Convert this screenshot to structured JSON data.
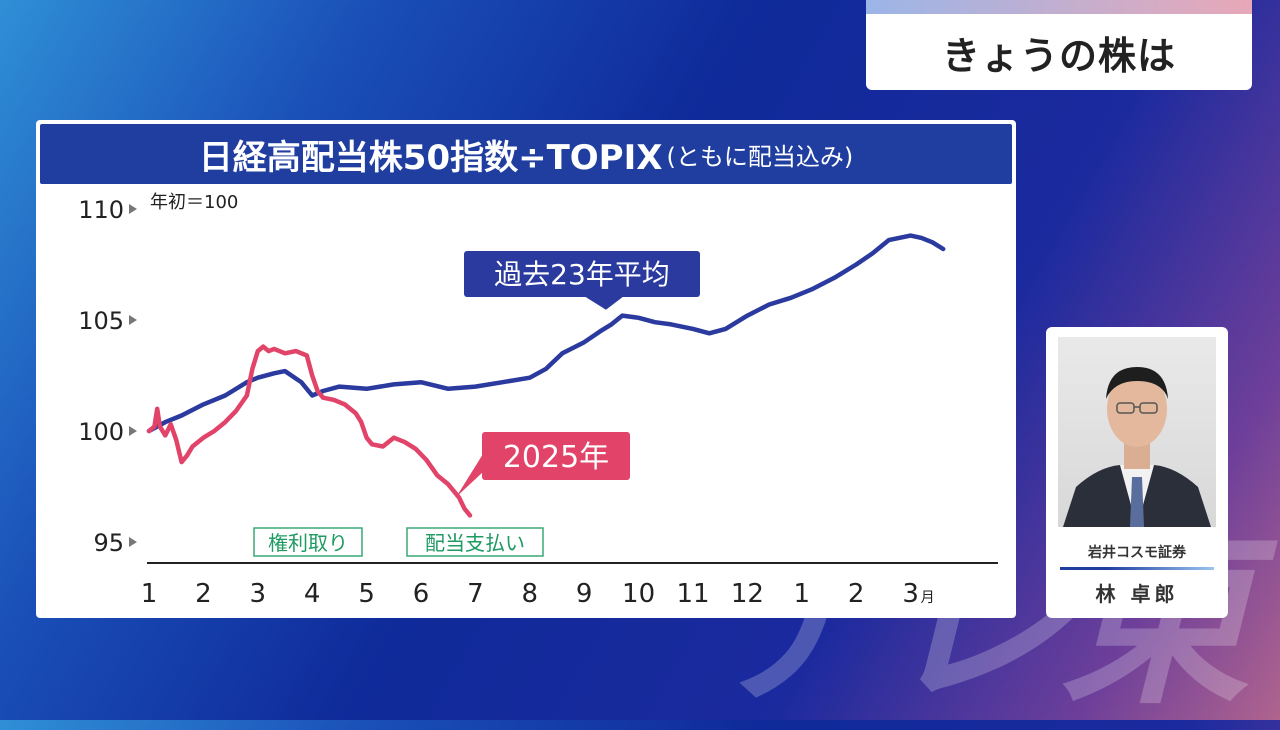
{
  "watermark": "テレ東",
  "segment_label": "きょうの株は",
  "chart_data": {
    "type": "line",
    "title": "日経高配当株50指数÷TOPIX",
    "title_sub": "(ともに配当込み)",
    "y_note": "年初＝100",
    "ylim": [
      95,
      110
    ],
    "y_ticks": [
      95,
      100,
      105,
      110
    ],
    "x_ticks": [
      "1",
      "2",
      "3",
      "4",
      "5",
      "6",
      "7",
      "8",
      "9",
      "10",
      "11",
      "12",
      "1",
      "2",
      "3"
    ],
    "x_unit": "月",
    "grid": false,
    "series": [
      {
        "name": "過去23年平均",
        "color": "#2a3a9e",
        "x": [
          1.0,
          1.3,
          1.6,
          2.0,
          2.4,
          2.8,
          3.0,
          3.3,
          3.5,
          3.8,
          4.0,
          4.2,
          4.5,
          5.0,
          5.5,
          6.0,
          6.5,
          7.0,
          7.5,
          8.0,
          8.3,
          8.6,
          9.0,
          9.3,
          9.5,
          9.7,
          10.0,
          10.3,
          10.6,
          11.0,
          11.3,
          11.6,
          12.0,
          12.4,
          12.8,
          13.2,
          13.6,
          14.0,
          14.3,
          14.6,
          15.0,
          15.2,
          15.4,
          15.6
        ],
        "y": [
          100.0,
          100.4,
          100.7,
          101.2,
          101.6,
          102.2,
          102.4,
          102.6,
          102.7,
          102.2,
          101.6,
          101.8,
          102.0,
          101.9,
          102.1,
          102.2,
          101.9,
          102.0,
          102.2,
          102.4,
          102.8,
          103.5,
          104.0,
          104.5,
          104.8,
          105.2,
          105.1,
          104.9,
          104.8,
          104.6,
          104.4,
          104.6,
          105.2,
          105.7,
          106.0,
          106.4,
          106.9,
          107.5,
          108.0,
          108.6,
          108.8,
          108.7,
          108.5,
          108.2
        ]
      },
      {
        "name": "2025年",
        "color": "#e14468",
        "x": [
          1.0,
          1.1,
          1.15,
          1.2,
          1.3,
          1.4,
          1.5,
          1.6,
          1.7,
          1.8,
          2.0,
          2.2,
          2.4,
          2.6,
          2.8,
          2.9,
          3.0,
          3.1,
          3.2,
          3.3,
          3.5,
          3.7,
          3.9,
          4.0,
          4.1,
          4.2,
          4.4,
          4.6,
          4.8,
          4.9,
          5.0,
          5.1,
          5.3,
          5.5,
          5.7,
          5.9,
          6.1,
          6.3,
          6.5,
          6.7,
          6.8,
          6.9
        ],
        "y": [
          100.0,
          100.2,
          101.0,
          100.2,
          99.8,
          100.3,
          99.6,
          98.6,
          98.9,
          99.3,
          99.7,
          100.0,
          100.4,
          100.9,
          101.6,
          102.8,
          103.6,
          103.8,
          103.6,
          103.7,
          103.5,
          103.6,
          103.4,
          102.5,
          101.8,
          101.5,
          101.4,
          101.2,
          100.8,
          100.4,
          99.7,
          99.4,
          99.3,
          99.7,
          99.5,
          99.2,
          98.7,
          98.0,
          97.6,
          97.0,
          96.5,
          96.2
        ]
      }
    ],
    "annotations": [
      {
        "text": "過去23年平均",
        "x": 9.4,
        "y": 105.1
      },
      {
        "text": "2025年",
        "x": 6.5,
        "y": 97.3
      }
    ],
    "period_labels": [
      "権利取り",
      "配当支払い"
    ]
  },
  "commentator": {
    "company": "岩井コスモ証券",
    "name": "林 卓郎"
  }
}
